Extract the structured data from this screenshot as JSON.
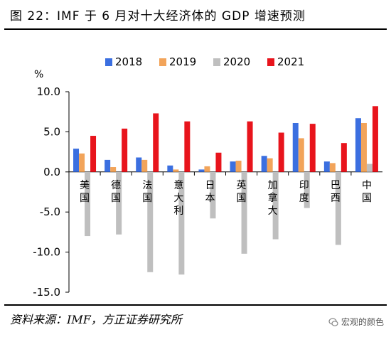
{
  "title": "图 22：IMF 于 6 月对十大经济体的 GDP 增速预测",
  "source": "资料来源：IMF，方正证券研究所",
  "watermark": "宏观的颜色",
  "chart_data": {
    "type": "bar",
    "ylabel": "%",
    "ylim": [
      -15,
      10
    ],
    "yticks": [
      "10.0",
      "5.0",
      "0.0",
      "-5.0",
      "-10.0",
      "-15.0"
    ],
    "ytick_values": [
      10,
      5,
      0,
      -5,
      -10,
      -15
    ],
    "categories": [
      "美国",
      "德国",
      "法国",
      "意大利",
      "日本",
      "英国",
      "加拿大",
      "印度",
      "巴西",
      "中国"
    ],
    "series": [
      {
        "name": "2018",
        "color": "#3b6fe0",
        "values": [
          2.9,
          1.5,
          1.8,
          0.8,
          0.3,
          1.3,
          2.0,
          6.1,
          1.3,
          6.7
        ]
      },
      {
        "name": "2019",
        "color": "#f2a45a",
        "values": [
          2.3,
          0.6,
          1.5,
          0.3,
          0.7,
          1.4,
          1.7,
          4.2,
          1.1,
          6.1
        ]
      },
      {
        "name": "2020",
        "color": "#bfbfbf",
        "values": [
          -8.0,
          -7.8,
          -12.5,
          -12.8,
          -5.8,
          -10.2,
          -8.4,
          -4.5,
          -9.1,
          1.0
        ]
      },
      {
        "name": "2021",
        "color": "#e8141c",
        "values": [
          4.5,
          5.4,
          7.3,
          6.3,
          2.4,
          6.3,
          4.9,
          6.0,
          3.6,
          8.2
        ]
      }
    ],
    "legend_position": "top-center",
    "grid": false
  }
}
